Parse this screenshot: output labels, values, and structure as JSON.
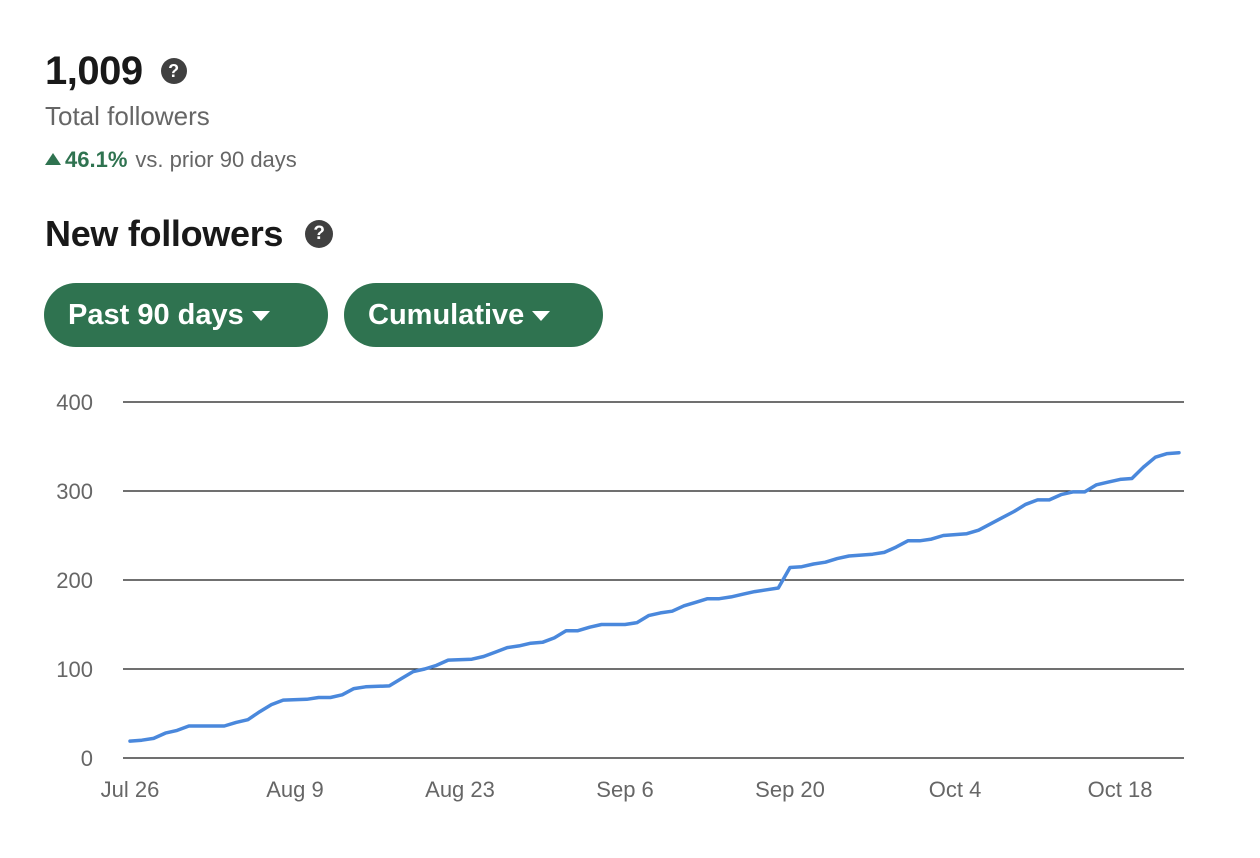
{
  "summary": {
    "total_value": "1,009",
    "total_label": "Total followers",
    "change_pct": "46.1%",
    "change_text": "vs. prior 90 days",
    "help_glyph": "?"
  },
  "section": {
    "title": "New followers",
    "help_glyph": "?"
  },
  "controls": {
    "range_label": "Past 90 days",
    "mode_label": "Cumulative"
  },
  "colors": {
    "accent": "#2f7350",
    "line": "#4a88dc",
    "grid": "#1a1a1a"
  },
  "chart_data": {
    "type": "line",
    "title": "",
    "xlabel": "",
    "ylabel": "",
    "ylim": [
      0,
      400
    ],
    "yticks": [
      0,
      100,
      200,
      300,
      400
    ],
    "xticks": [
      "Jul 26",
      "Aug 9",
      "Aug 23",
      "Sep 6",
      "Sep 20",
      "Oct 4",
      "Oct 18"
    ],
    "grid": true,
    "series": [
      {
        "values": [
          {
            "x": "2023-07-26",
            "y": 19
          },
          {
            "x": "2023-07-27",
            "y": 20
          },
          {
            "x": "2023-07-28",
            "y": 22
          },
          {
            "x": "2023-07-29",
            "y": 28
          },
          {
            "x": "2023-07-30",
            "y": 31
          },
          {
            "x": "2023-07-31",
            "y": 36
          },
          {
            "x": "2023-08-03",
            "y": 36
          },
          {
            "x": "2023-08-04",
            "y": 40
          },
          {
            "x": "2023-08-05",
            "y": 43
          },
          {
            "x": "2023-08-06",
            "y": 52
          },
          {
            "x": "2023-08-07",
            "y": 60
          },
          {
            "x": "2023-08-08",
            "y": 65
          },
          {
            "x": "2023-08-10",
            "y": 66
          },
          {
            "x": "2023-08-11",
            "y": 68
          },
          {
            "x": "2023-08-12",
            "y": 68
          },
          {
            "x": "2023-08-13",
            "y": 71
          },
          {
            "x": "2023-08-14",
            "y": 78
          },
          {
            "x": "2023-08-15",
            "y": 80
          },
          {
            "x": "2023-08-17",
            "y": 81
          },
          {
            "x": "2023-08-18",
            "y": 89
          },
          {
            "x": "2023-08-19",
            "y": 97
          },
          {
            "x": "2023-08-20",
            "y": 100
          },
          {
            "x": "2023-08-21",
            "y": 104
          },
          {
            "x": "2023-08-22",
            "y": 110
          },
          {
            "x": "2023-08-24",
            "y": 111
          },
          {
            "x": "2023-08-25",
            "y": 114
          },
          {
            "x": "2023-08-26",
            "y": 119
          },
          {
            "x": "2023-08-27",
            "y": 124
          },
          {
            "x": "2023-08-28",
            "y": 126
          },
          {
            "x": "2023-08-29",
            "y": 129
          },
          {
            "x": "2023-08-30",
            "y": 130
          },
          {
            "x": "2023-08-31",
            "y": 135
          },
          {
            "x": "2023-09-01",
            "y": 143
          },
          {
            "x": "2023-09-02",
            "y": 143
          },
          {
            "x": "2023-09-03",
            "y": 147
          },
          {
            "x": "2023-09-04",
            "y": 150
          },
          {
            "x": "2023-09-06",
            "y": 150
          },
          {
            "x": "2023-09-07",
            "y": 152
          },
          {
            "x": "2023-09-08",
            "y": 160
          },
          {
            "x": "2023-09-09",
            "y": 163
          },
          {
            "x": "2023-09-10",
            "y": 165
          },
          {
            "x": "2023-09-11",
            "y": 171
          },
          {
            "x": "2023-09-12",
            "y": 175
          },
          {
            "x": "2023-09-13",
            "y": 179
          },
          {
            "x": "2023-09-14",
            "y": 179
          },
          {
            "x": "2023-09-15",
            "y": 181
          },
          {
            "x": "2023-09-16",
            "y": 184
          },
          {
            "x": "2023-09-17",
            "y": 187
          },
          {
            "x": "2023-09-18",
            "y": 189
          },
          {
            "x": "2023-09-19",
            "y": 191
          },
          {
            "x": "2023-09-20",
            "y": 214
          },
          {
            "x": "2023-09-21",
            "y": 215
          },
          {
            "x": "2023-09-22",
            "y": 218
          },
          {
            "x": "2023-09-23",
            "y": 220
          },
          {
            "x": "2023-09-24",
            "y": 224
          },
          {
            "x": "2023-09-25",
            "y": 227
          },
          {
            "x": "2023-09-26",
            "y": 228
          },
          {
            "x": "2023-09-27",
            "y": 229
          },
          {
            "x": "2023-09-28",
            "y": 231
          },
          {
            "x": "2023-09-29",
            "y": 237
          },
          {
            "x": "2023-09-30",
            "y": 244
          },
          {
            "x": "2023-10-01",
            "y": 244
          },
          {
            "x": "2023-10-02",
            "y": 246
          },
          {
            "x": "2023-10-03",
            "y": 250
          },
          {
            "x": "2023-10-04",
            "y": 251
          },
          {
            "x": "2023-10-05",
            "y": 252
          },
          {
            "x": "2023-10-06",
            "y": 256
          },
          {
            "x": "2023-10-07",
            "y": 263
          },
          {
            "x": "2023-10-08",
            "y": 270
          },
          {
            "x": "2023-10-09",
            "y": 277
          },
          {
            "x": "2023-10-10",
            "y": 285
          },
          {
            "x": "2023-10-11",
            "y": 290
          },
          {
            "x": "2023-10-12",
            "y": 290
          },
          {
            "x": "2023-10-13",
            "y": 296
          },
          {
            "x": "2023-10-14",
            "y": 299
          },
          {
            "x": "2023-10-15",
            "y": 299
          },
          {
            "x": "2023-10-16",
            "y": 307
          },
          {
            "x": "2023-10-17",
            "y": 310
          },
          {
            "x": "2023-10-18",
            "y": 313
          },
          {
            "x": "2023-10-19",
            "y": 314
          },
          {
            "x": "2023-10-20",
            "y": 327
          },
          {
            "x": "2023-10-21",
            "y": 338
          },
          {
            "x": "2023-10-22",
            "y": 342
          },
          {
            "x": "2023-10-23",
            "y": 343
          }
        ]
      }
    ]
  }
}
